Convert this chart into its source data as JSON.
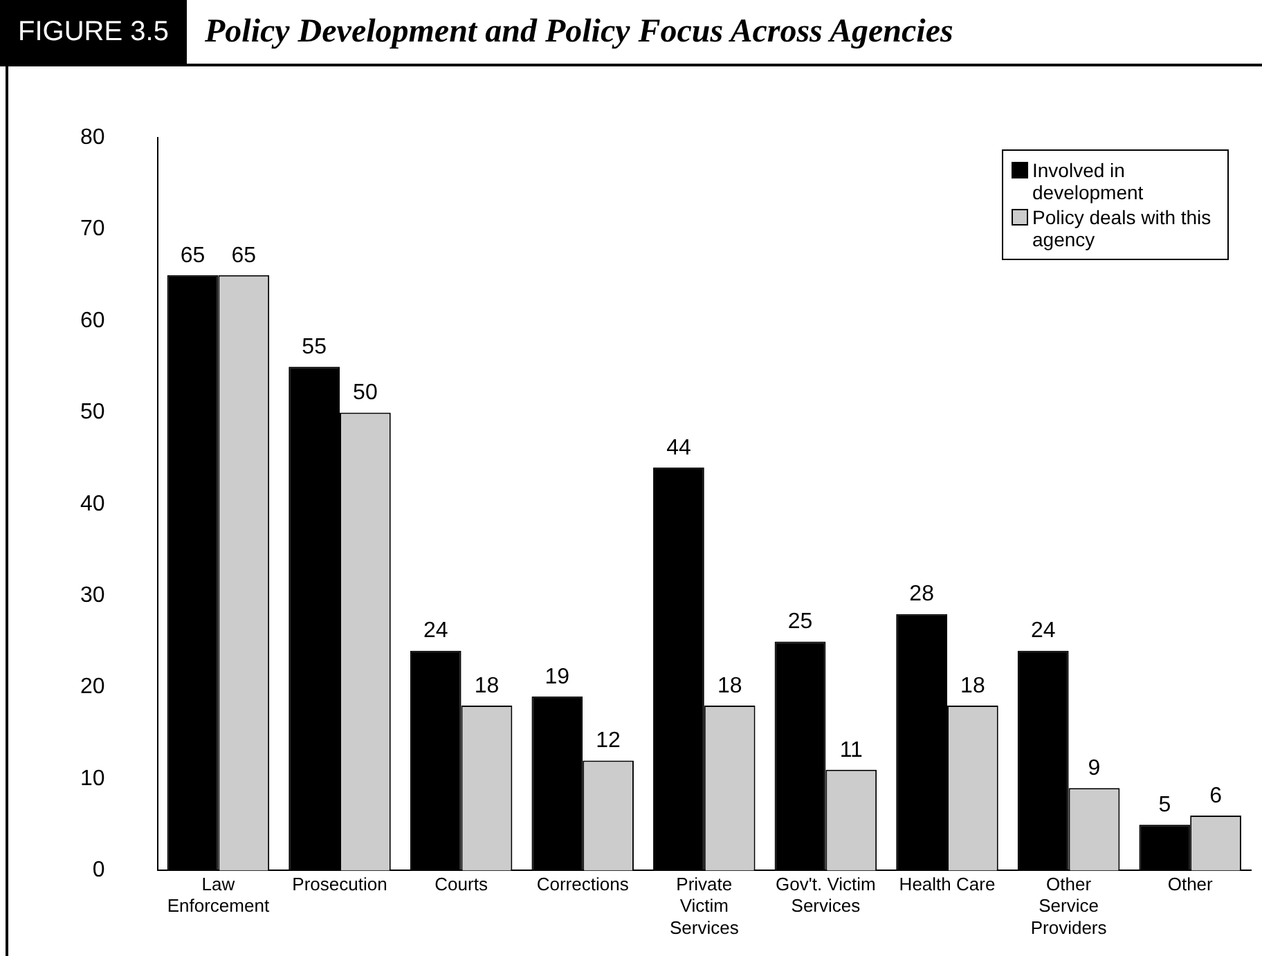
{
  "chart_data": {
    "type": "bar",
    "title": "Policy Development and Policy Focus Across Agencies",
    "annotations": [
      "FIGURE 3.5"
    ],
    "categories": [
      "Law Enforcement",
      "Prosecution",
      "Courts",
      "Corrections",
      "Private Victim Services",
      "Gov't. Victim Services",
      "Health Care",
      "Other Service Providers",
      "Other"
    ],
    "series": [
      {
        "name": "Involved in development",
        "color": "#000000",
        "values": [
          65,
          55,
          24,
          19,
          44,
          25,
          28,
          24,
          5
        ]
      },
      {
        "name": "Policy deals with this agency",
        "color": "#cccccc",
        "values": [
          65,
          50,
          18,
          12,
          18,
          11,
          18,
          9,
          6
        ]
      }
    ],
    "ylim": [
      0,
      80
    ],
    "yticks": [
      0,
      10,
      20,
      30,
      40,
      50,
      60,
      70,
      80
    ],
    "grid": false,
    "legend": "top right",
    "data_labels": true
  }
}
